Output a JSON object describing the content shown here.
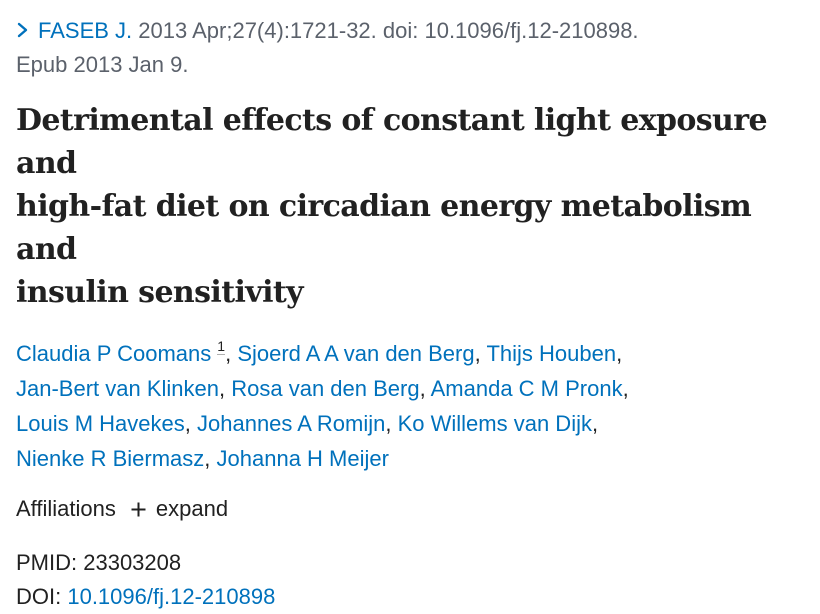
{
  "citation": {
    "journal": "FASEB J.",
    "details": " 2013 Apr;27(4):1721-32. doi: 10.1096/fj.12-210898.",
    "epub": "Epub 2013 Jan 9."
  },
  "title_line1": "Detrimental effects of constant light exposure and",
  "title_line2": "high-fat diet on circadian energy metabolism and",
  "title_line3": "insulin sensitivity",
  "authors": [
    {
      "name": "Claudia P Coomans",
      "aff": "1"
    },
    {
      "name": "Sjoerd A A van den Berg"
    },
    {
      "name": "Thijs Houben"
    },
    {
      "name": "Jan-Bert van Klinken"
    },
    {
      "name": "Rosa van den Berg"
    },
    {
      "name": "Amanda C M Pronk"
    },
    {
      "name": "Louis M Havekes"
    },
    {
      "name": "Johannes A Romijn"
    },
    {
      "name": "Ko Willems van Dijk"
    },
    {
      "name": "Nienke R Biermasz"
    },
    {
      "name": "Johanna H Meijer"
    }
  ],
  "punct": {
    "comma": ","
  },
  "affiliations": {
    "label": "Affiliations",
    "expand_label": "expand"
  },
  "ids": {
    "pmid_label": "PMID: ",
    "pmid": "23303208",
    "doi_label": "DOI: ",
    "doi": "10.1096/fj.12-210898"
  },
  "icons": {
    "chevron": "chevron-right-icon",
    "plus": "plus-icon"
  },
  "colors": {
    "link": "#0071bc",
    "text": "#212121",
    "muted": "#5b616b"
  }
}
